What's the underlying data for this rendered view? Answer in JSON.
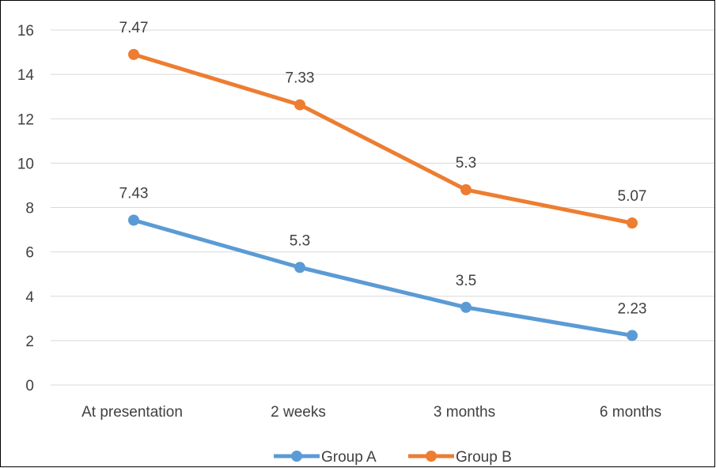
{
  "chart_data": {
    "type": "line",
    "title": "",
    "xlabel": "",
    "ylabel": "",
    "categories": [
      "At presentation",
      "2 weeks",
      "3 months",
      "6 months"
    ],
    "ylim": [
      0,
      16
    ],
    "yticks": [
      0,
      2,
      4,
      6,
      8,
      10,
      12,
      14,
      16
    ],
    "grid": true,
    "legend_position": "bottom",
    "series": [
      {
        "name": "Group A",
        "color": "#5b9bd5",
        "values": [
          7.43,
          5.3,
          3.5,
          2.23
        ],
        "labels": [
          "7.43",
          "5.3",
          "3.5",
          "2.23"
        ]
      },
      {
        "name": "Group B",
        "color": "#ed7d31",
        "values": [
          14.9,
          12.63,
          8.8,
          7.3
        ],
        "labels": [
          "7.47",
          "7.33",
          "5.3",
          "5.07"
        ]
      }
    ]
  }
}
